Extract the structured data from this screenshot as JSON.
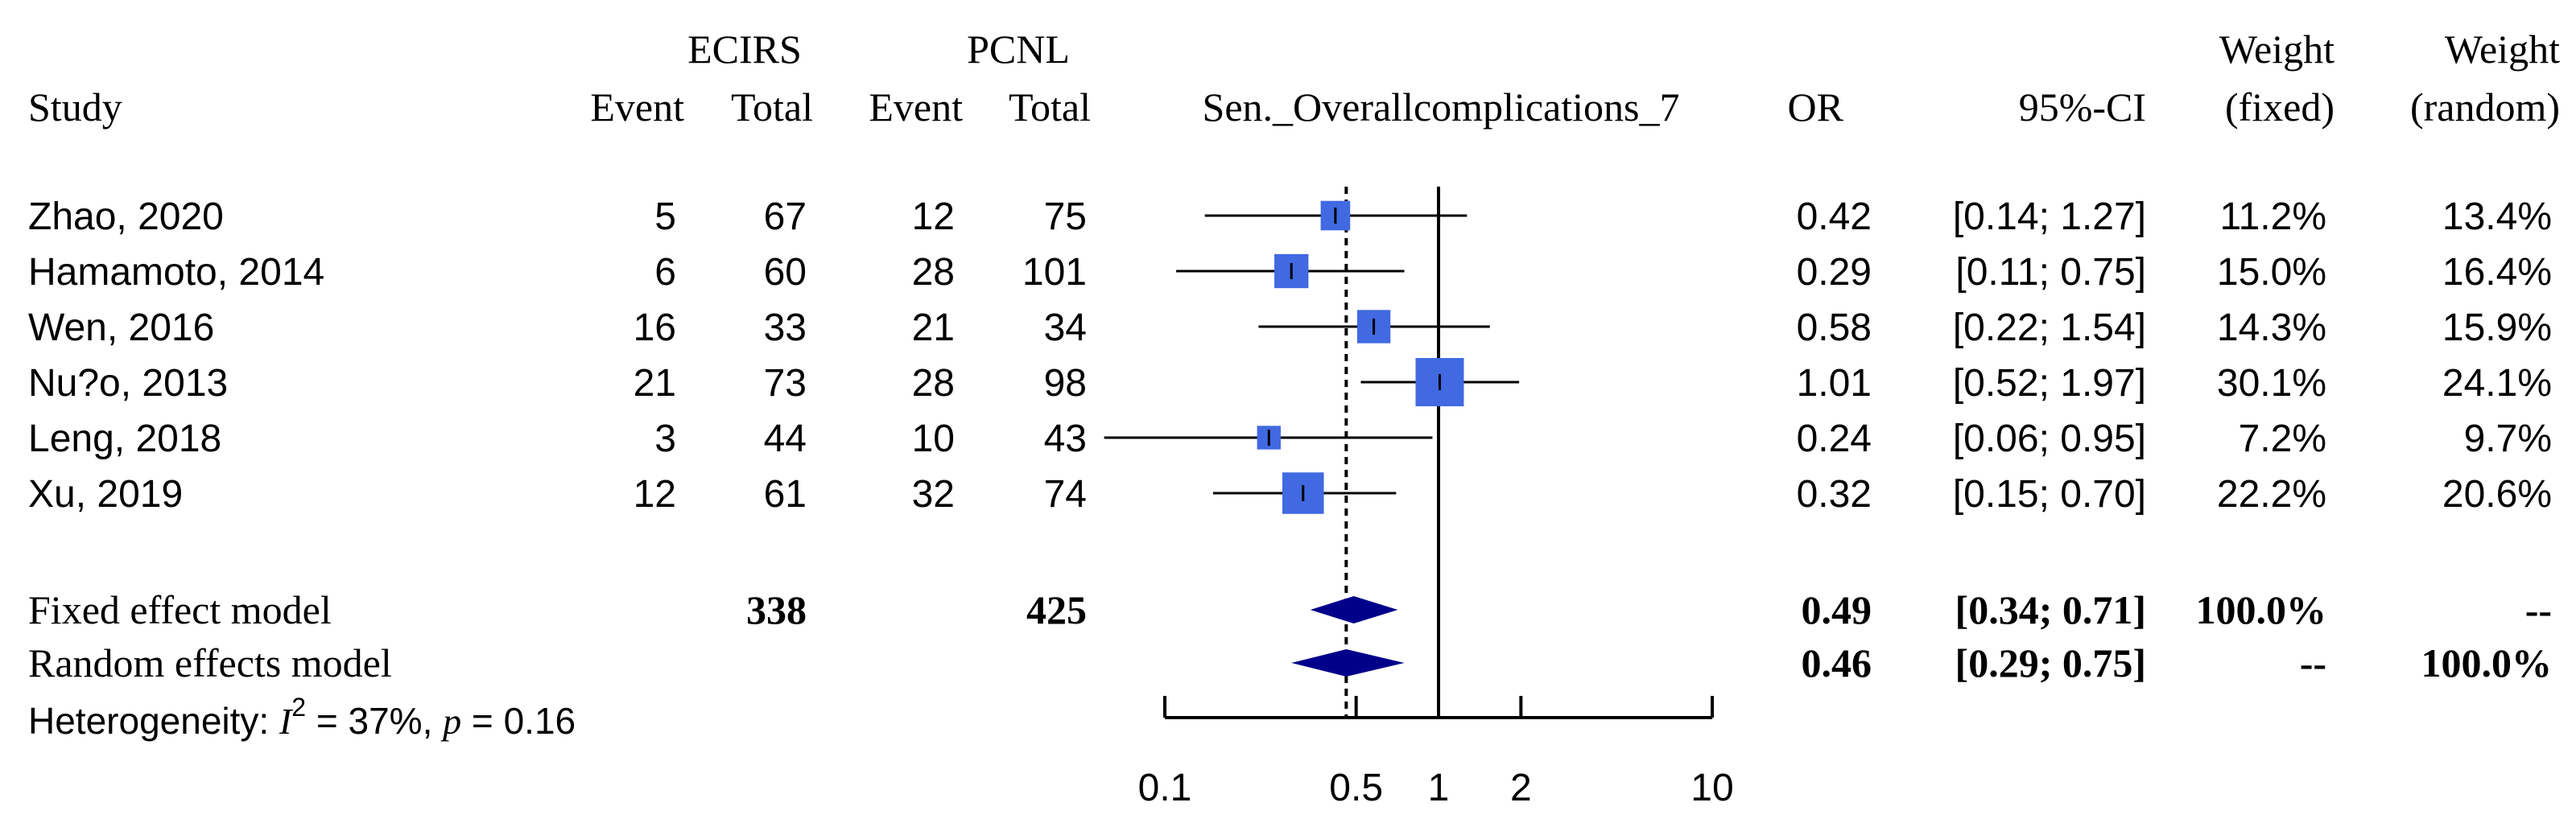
{
  "header": {
    "group1": "ECIRS",
    "group2": "PCNL",
    "study": "Study",
    "event1": "Event",
    "total1": "Total",
    "event2": "Event",
    "total2": "Total",
    "outcome": "Sen._Overallcomplications_7",
    "or": "OR",
    "ci": "95%-CI",
    "weight_fixed_1": "Weight",
    "weight_fixed_2": "(fixed)",
    "weight_random_1": "Weight",
    "weight_random_2": "(random)"
  },
  "colors": {
    "box": "#4169E1",
    "diamond": "#00008B",
    "line": "#000000"
  },
  "chart_data": {
    "type": "forest",
    "x_scale": "log",
    "x_ticks": [
      0.1,
      0.5,
      1,
      2,
      10
    ],
    "x_tick_labels": [
      "0.1",
      "0.5",
      "1",
      "2",
      "10"
    ],
    "null_line": 1,
    "summary_line": 0.46,
    "studies": [
      {
        "name": "Zhao, 2020",
        "e1": "5",
        "n1": "67",
        "e2": "12",
        "n2": "75",
        "or": 0.42,
        "lo": 0.14,
        "hi": 1.27,
        "or_text": "0.42",
        "ci_text": "[0.14; 1.27]",
        "w_fixed": "11.2%",
        "w_random": "13.4%"
      },
      {
        "name": "Hamamoto, 2014",
        "e1": "6",
        "n1": "60",
        "e2": "28",
        "n2": "101",
        "or": 0.29,
        "lo": 0.11,
        "hi": 0.75,
        "or_text": "0.29",
        "ci_text": "[0.11; 0.75]",
        "w_fixed": "15.0%",
        "w_random": "16.4%"
      },
      {
        "name": "Wen, 2016",
        "e1": "16",
        "n1": "33",
        "e2": "21",
        "n2": "34",
        "or": 0.58,
        "lo": 0.22,
        "hi": 1.54,
        "or_text": "0.58",
        "ci_text": "[0.22; 1.54]",
        "w_fixed": "14.3%",
        "w_random": "15.9%"
      },
      {
        "name": "Nu?o, 2013",
        "e1": "21",
        "n1": "73",
        "e2": "28",
        "n2": "98",
        "or": 1.01,
        "lo": 0.52,
        "hi": 1.97,
        "or_text": "1.01",
        "ci_text": "[0.52; 1.97]",
        "w_fixed": "30.1%",
        "w_random": "24.1%"
      },
      {
        "name": "Leng, 2018",
        "e1": "3",
        "n1": "44",
        "e2": "10",
        "n2": "43",
        "or": 0.24,
        "lo": 0.06,
        "hi": 0.95,
        "or_text": "0.24",
        "ci_text": "[0.06; 0.95]",
        "w_fixed": "7.2%",
        "w_random": "9.7%"
      },
      {
        "name": "Xu, 2019",
        "e1": "12",
        "n1": "61",
        "e2": "32",
        "n2": "74",
        "or": 0.32,
        "lo": 0.15,
        "hi": 0.7,
        "or_text": "0.32",
        "ci_text": "[0.15; 0.70]",
        "w_fixed": "22.2%",
        "w_random": "20.6%"
      }
    ],
    "models": [
      {
        "name": "Fixed effect model",
        "n1": "338",
        "n2": "425",
        "or": 0.49,
        "lo": 0.34,
        "hi": 0.71,
        "or_text": "0.49",
        "ci_text": "[0.34; 0.71]",
        "w_fixed": "100.0%",
        "w_random": "--"
      },
      {
        "name": "Random effects model",
        "n1": "",
        "n2": "",
        "or": 0.46,
        "lo": 0.29,
        "hi": 0.75,
        "or_text": "0.46",
        "ci_text": "[0.29; 0.75]",
        "w_fixed": "--",
        "w_random": "100.0%"
      }
    ],
    "heterogeneity": {
      "label": "Heterogeneity: ",
      "i_symbol": "I",
      "i_sup": "2",
      "i2_text": " = 37%, ",
      "p_symbol": "p",
      "p_text": " = 0.16"
    }
  }
}
